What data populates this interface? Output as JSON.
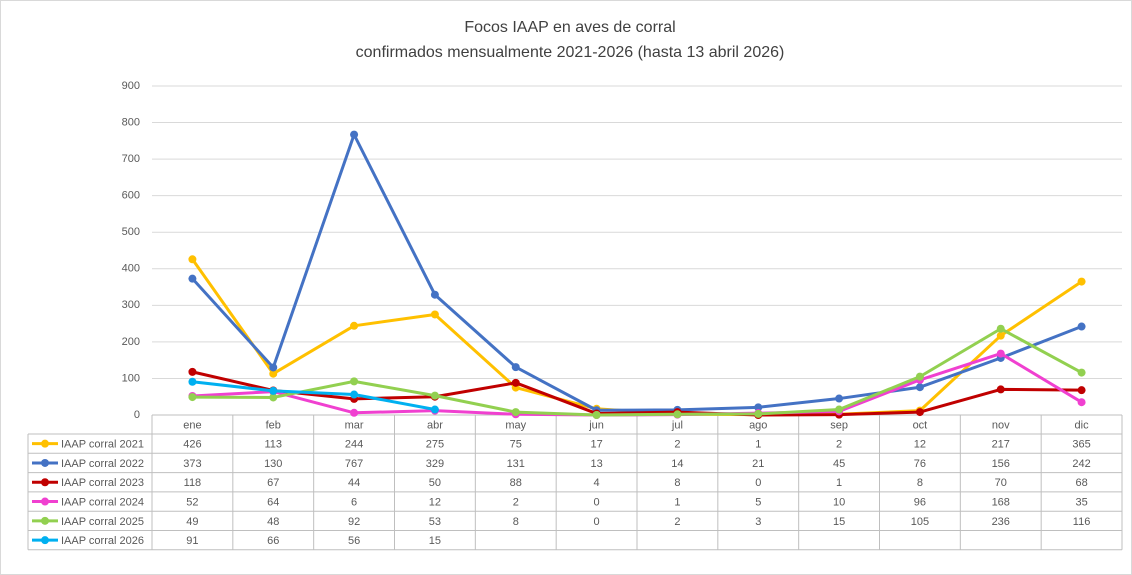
{
  "chart_data": {
    "type": "line",
    "title": "Focos IAAP en aves de corral",
    "subtitle": "confirmados mensualmente 2021-2026 (hasta 13 abril 2026)",
    "categories": [
      "ene",
      "feb",
      "mar",
      "abr",
      "may",
      "jun",
      "jul",
      "ago",
      "sep",
      "oct",
      "nov",
      "dic"
    ],
    "ylim": [
      0,
      900
    ],
    "yticks": [
      0,
      100,
      200,
      300,
      400,
      500,
      600,
      700,
      800,
      900
    ],
    "grid": true,
    "series": [
      {
        "name": "IAAP corral 2021",
        "color": "#ffc000",
        "values": [
          426,
          113,
          244,
          275,
          75,
          17,
          2,
          1,
          2,
          12,
          217,
          365
        ]
      },
      {
        "name": "IAAP corral 2022",
        "color": "#4472c4",
        "values": [
          373,
          130,
          767,
          329,
          131,
          13,
          14,
          21,
          45,
          76,
          156,
          242
        ]
      },
      {
        "name": "IAAP corral 2023",
        "color": "#c00000",
        "values": [
          118,
          67,
          44,
          50,
          88,
          4,
          8,
          0,
          1,
          8,
          70,
          68
        ]
      },
      {
        "name": "IAAP corral 2024",
        "color": "#f040d0",
        "values": [
          52,
          64,
          6,
          12,
          2,
          0,
          1,
          5,
          10,
          96,
          168,
          35
        ]
      },
      {
        "name": "IAAP corral 2025",
        "color": "#92d050",
        "values": [
          49,
          48,
          92,
          53,
          8,
          0,
          2,
          3,
          15,
          105,
          236,
          116
        ]
      },
      {
        "name": "IAAP corral 2026",
        "color": "#00b0f0",
        "values": [
          91,
          66,
          56,
          15,
          null,
          null,
          null,
          null,
          null,
          null,
          null,
          null
        ]
      }
    ]
  }
}
